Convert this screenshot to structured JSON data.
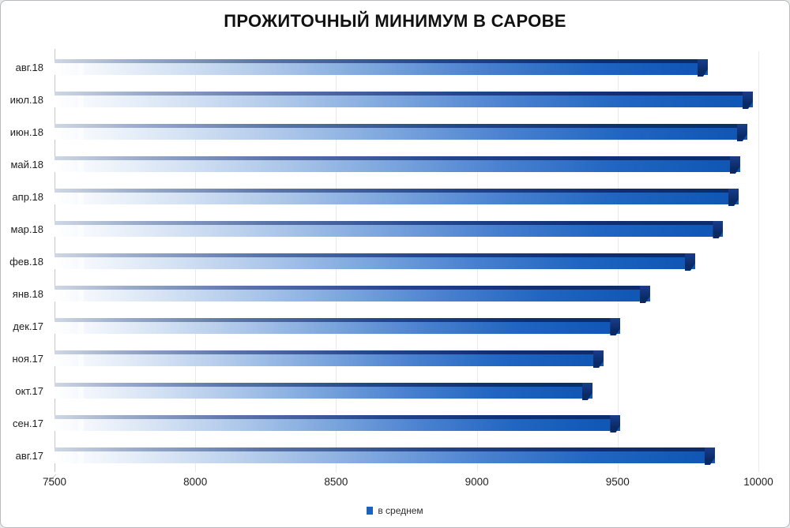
{
  "window": {
    "title": "ПРОЖИТОЧНЫЙ МИНИМУМ В САРОВЕ"
  },
  "colors": {
    "bar_main": "#0e55b4",
    "bar_dark": "#0b2b69",
    "legend_marker": "#1b61c1",
    "gridline": "#eaeaec",
    "axis_line": "#c7c7c9",
    "text": "#1f1f1f"
  },
  "legend": {
    "label": "в среднем"
  },
  "chart_data": {
    "type": "bar",
    "orientation": "horizontal",
    "title": "ПРОЖИТОЧНЫЙ МИНИМУМ В САРОВЕ",
    "categories": [
      "авг.18",
      "июл.18",
      "июн.18",
      "май.18",
      "апр.18",
      "мар.18",
      "фев.18",
      "янв.18",
      "дек.17",
      "ноя.17",
      "окт.17",
      "сен.17",
      "авг.17"
    ],
    "series": [
      {
        "name": "в среднем",
        "values": [
          9820,
          9980,
          9960,
          9935,
          9930,
          9875,
          9775,
          9615,
          9510,
          9450,
          9410,
          9510,
          9845
        ]
      }
    ],
    "xlabel": "",
    "ylabel": "",
    "xlim": [
      7500,
      10000
    ],
    "x_ticks": [
      7500,
      8000,
      8500,
      9000,
      9500,
      10000
    ],
    "grid": "vertical",
    "legend_position": "bottom"
  }
}
